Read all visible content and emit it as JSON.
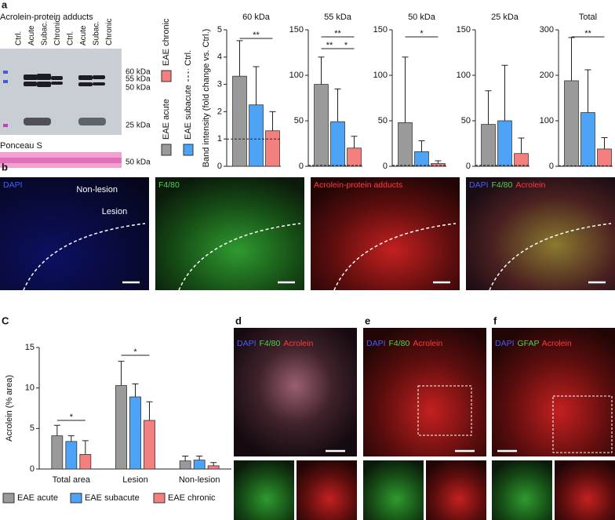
{
  "figure_labels": {
    "a": "a",
    "b": "b",
    "c": "C",
    "d": "d",
    "e": "e",
    "f": "f"
  },
  "panel_a": {
    "title": "Acrolein-protein adducts",
    "lanes": [
      "Ctrl.",
      "Acute",
      "Subac.",
      "Chronic",
      "Ctrl.",
      "Acute",
      "Subac.",
      "Chronic"
    ],
    "markers": [
      "60 kDa",
      "55 kDa",
      "50 kDa",
      "25 kDa"
    ],
    "ponceau_title": "Ponceau S",
    "ponceau_marker": "50 kDa",
    "legend": {
      "items": [
        {
          "name": "EAE acute",
          "color": "#9a9a9a"
        },
        {
          "name": "EAE subacute",
          "color": "#4da3f5"
        },
        {
          "name": "EAE chronic",
          "color": "#f47f7f"
        }
      ],
      "reference": "Ctrl."
    },
    "ylabel": "Band intensity (fold change vs. Ctrl.)"
  },
  "panel_b": {
    "images": [
      [
        {
          "text": "DAPI",
          "color": "#4a5cff"
        }
      ],
      [
        {
          "text": "F4/80",
          "color": "#4fd24f"
        }
      ],
      [
        {
          "text": "Acrolein-protein adducts",
          "color": "#ff3b3b"
        }
      ],
      [
        {
          "text": "DAPI",
          "color": "#4a5cff"
        },
        {
          "text": "F4/80",
          "color": "#4fd24f"
        },
        {
          "text": "Acrolein",
          "color": "#ff3b3b"
        }
      ]
    ],
    "regions": [
      "Non-lesion",
      "Lesion"
    ]
  },
  "panel_d": [
    {
      "text": "DAPI",
      "color": "#4a5cff"
    },
    {
      "text": "F4/80",
      "color": "#4fd24f"
    },
    {
      "text": "Acrolein",
      "color": "#ff3b3b"
    }
  ],
  "panel_e": [
    {
      "text": "DAPI",
      "color": "#4a5cff"
    },
    {
      "text": "F4/80",
      "color": "#4fd24f"
    },
    {
      "text": "Acrolein",
      "color": "#ff3b3b"
    }
  ],
  "panel_f": [
    {
      "text": "DAPI",
      "color": "#4a5cff"
    },
    {
      "text": "GFAP",
      "color": "#4fd24f"
    },
    {
      "text": "Acrolein",
      "color": "#ff3b3b"
    }
  ],
  "chart_data": [
    {
      "type": "bar",
      "title": "60 kDa",
      "values": [
        3.3,
        2.25,
        1.3
      ],
      "errors": [
        1.3,
        1.4,
        0.7
      ],
      "colors": [
        "#9a9a9a",
        "#4da3f5",
        "#f47f7f"
      ],
      "ylim": [
        0,
        5
      ],
      "yticks": [
        0,
        1,
        2,
        3,
        4,
        5
      ],
      "reference_line": 1,
      "annotations": [
        "**"
      ]
    },
    {
      "type": "bar",
      "title": "55 kDa",
      "values": [
        90,
        49,
        20
      ],
      "errors": [
        30,
        36,
        13
      ],
      "colors": [
        "#9a9a9a",
        "#4da3f5",
        "#f47f7f"
      ],
      "ylim": [
        0,
        150
      ],
      "yticks": [
        0,
        50,
        100,
        150
      ],
      "reference_line": 1,
      "annotations": [
        "**",
        "**",
        "*"
      ]
    },
    {
      "type": "bar",
      "title": "50 kDa",
      "values": [
        48,
        16,
        3
      ],
      "errors": [
        72,
        12,
        3
      ],
      "colors": [
        "#9a9a9a",
        "#4da3f5",
        "#f47f7f"
      ],
      "ylim": [
        0,
        150
      ],
      "yticks": [
        0,
        50,
        100,
        150
      ],
      "reference_line": 1,
      "annotations": [
        "*"
      ]
    },
    {
      "type": "bar",
      "title": "25 kDa",
      "values": [
        46,
        50,
        14
      ],
      "errors": [
        37,
        61,
        17
      ],
      "colors": [
        "#9a9a9a",
        "#4da3f5",
        "#f47f7f"
      ],
      "ylim": [
        0,
        150
      ],
      "yticks": [
        0,
        50,
        100,
        150
      ],
      "reference_line": 1,
      "annotations": []
    },
    {
      "type": "bar",
      "title": "Total",
      "values": [
        188,
        118,
        38
      ],
      "errors": [
        95,
        94,
        25
      ],
      "colors": [
        "#9a9a9a",
        "#4da3f5",
        "#f47f7f"
      ],
      "ylim": [
        0,
        300
      ],
      "yticks": [
        0,
        100,
        200,
        300
      ],
      "reference_line": 1,
      "annotations": [
        "**"
      ]
    },
    {
      "type": "grouped_bar",
      "ylabel": "Acrolein (% area)",
      "categories": [
        "Total area",
        "Lesion",
        "Non-lesion"
      ],
      "series": [
        {
          "name": "EAE acute",
          "color": "#9a9a9a",
          "values": [
            4.1,
            10.3,
            1.0
          ],
          "errors": [
            1.3,
            3.0,
            0.6
          ]
        },
        {
          "name": "EAE subacute",
          "color": "#4da3f5",
          "values": [
            3.4,
            8.9,
            1.1
          ],
          "errors": [
            0.7,
            1.6,
            0.5
          ]
        },
        {
          "name": "EAE chronic",
          "color": "#f47f7f",
          "values": [
            1.8,
            6.0,
            0.4
          ],
          "errors": [
            1.7,
            2.3,
            0.4
          ]
        }
      ],
      "ylim": [
        0,
        15
      ],
      "yticks": [
        0,
        5,
        10,
        15
      ],
      "annotations": [
        "*",
        "*"
      ]
    }
  ]
}
